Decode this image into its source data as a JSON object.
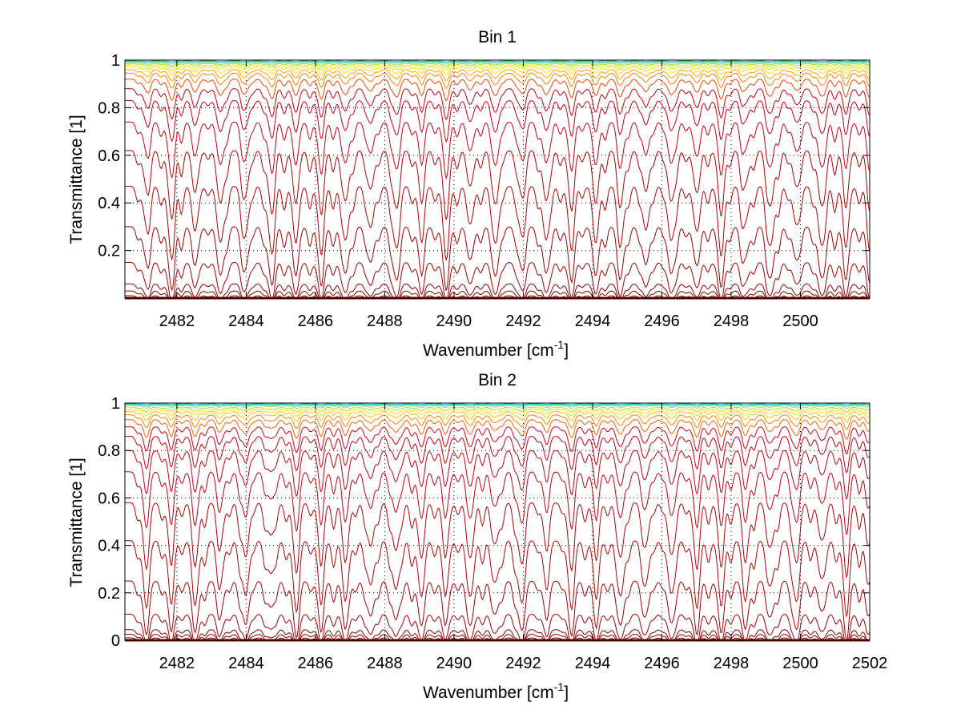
{
  "chart_data": [
    {
      "type": "line",
      "title": "Bin 1",
      "xlabel": "Wavenumber [cm",
      "xlabel_sup": "-1",
      "xlabel_end": "]",
      "ylabel": "Transmittance [1]",
      "xlim": [
        2480.5,
        2502
      ],
      "ylim": [
        0,
        1
      ],
      "grid": true,
      "xticks": [
        2482,
        2484,
        2486,
        2488,
        2490,
        2492,
        2494,
        2496,
        2498,
        2500
      ],
      "xtick_labels": [
        "2482",
        "2484",
        "2486",
        "2488",
        "2490",
        "2492",
        "2494",
        "2496",
        "2498",
        "2500"
      ],
      "yticks": [
        0.2,
        0.4,
        0.6,
        0.8,
        1
      ],
      "ytick_labels": [
        "0.2",
        "0.4",
        "0.6",
        "0.8",
        "1"
      ],
      "series_baselines": [
        0.0,
        0.01,
        0.03,
        0.06,
        0.15,
        0.3,
        0.47,
        0.62,
        0.74,
        0.83,
        0.88,
        0.92,
        0.945,
        0.96,
        0.972,
        0.98,
        0.986,
        0.99,
        0.994,
        0.997,
        1.0
      ],
      "line_center": 2481.1,
      "line_spacing": 0.722,
      "colors": [
        "#7f0000",
        "#8b0000",
        "#a00000",
        "#b40000",
        "#c80010",
        "#d40018",
        "#e02010",
        "#ee4400",
        "#f86000",
        "#ff8000",
        "#ffa000",
        "#ffc000",
        "#ffe000",
        "#a0e040",
        "#20c0c0",
        "#0040c0"
      ]
    },
    {
      "type": "line",
      "title": "Bin 2",
      "xlabel": "Wavenumber [cm",
      "xlabel_sup": "-1",
      "xlabel_end": "]",
      "ylabel": "Transmittance [1]",
      "xlim": [
        2480.5,
        2502
      ],
      "ylim": [
        0,
        1
      ],
      "grid": true,
      "xticks": [
        2482,
        2484,
        2486,
        2488,
        2490,
        2492,
        2494,
        2496,
        2498,
        2500,
        2502
      ],
      "xtick_labels": [
        "2482",
        "2484",
        "2486",
        "2488",
        "2490",
        "2492",
        "2494",
        "2496",
        "2498",
        "2500",
        "2502"
      ],
      "yticks": [
        0,
        0.2,
        0.4,
        0.6,
        0.8,
        1
      ],
      "ytick_labels": [
        "0",
        "0.2",
        "0.4",
        "0.6",
        "0.8",
        "1"
      ],
      "series_baselines": [
        0.0,
        0.01,
        0.025,
        0.045,
        0.11,
        0.25,
        0.42,
        0.58,
        0.71,
        0.8,
        0.86,
        0.9,
        0.93,
        0.95,
        0.965,
        0.975,
        0.983,
        0.99,
        0.994,
        0.997,
        1.0
      ],
      "line_center": 2481.1,
      "line_spacing": 0.722,
      "colors": [
        "#7f0000",
        "#8b0000",
        "#a00000",
        "#b40000",
        "#c80010",
        "#d40018",
        "#e02010",
        "#ee4400",
        "#f86000",
        "#ff8000",
        "#ffa000",
        "#ffc000",
        "#ffe000",
        "#a0e040",
        "#20c0c0",
        "#0040c0"
      ]
    }
  ]
}
